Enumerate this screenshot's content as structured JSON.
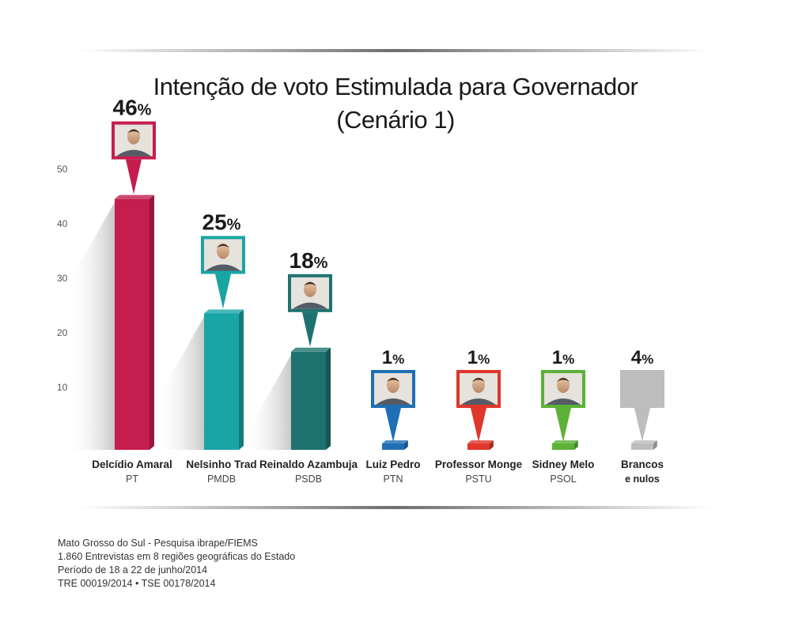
{
  "chart_data": {
    "type": "bar",
    "title": "Intenção de voto Estimulada para Governador",
    "subtitle": "(Cenário 1)",
    "y_ticks": [
      "10",
      "20",
      "30",
      "40",
      "50"
    ],
    "ylim": [
      0,
      50
    ],
    "percent_symbol": "%",
    "categories": [
      {
        "name": "Delcídio Amaral",
        "party": "PT",
        "value": 46,
        "value_label": "46",
        "color": "#c41e4e",
        "photo": "candidate-photo"
      },
      {
        "name": "Nelsinho Trad",
        "party": "PMDB",
        "value": 25,
        "value_label": "25",
        "color": "#1aa5a5",
        "photo": "candidate-photo"
      },
      {
        "name": "Reinaldo Azambuja",
        "party": "PSDB",
        "value": 18,
        "value_label": "18",
        "color": "#1e7370",
        "photo": "candidate-photo"
      },
      {
        "name": "Luiz Pedro",
        "party": "PTN",
        "value": 1,
        "value_label": "1",
        "color": "#1f6fb5",
        "photo": "candidate-photo"
      },
      {
        "name": "Professor Monge",
        "party": "PSTU",
        "value": 1,
        "value_label": "1",
        "color": "#e0362b",
        "photo": "candidate-photo"
      },
      {
        "name": "Sidney Melo",
        "party": "PSOL",
        "value": 1,
        "value_label": "1",
        "color": "#5cb238",
        "photo": "candidate-photo"
      },
      {
        "name": "Brancos",
        "name2": "e nulos",
        "party": "",
        "value": 4,
        "value_label": "4",
        "color": "#bdbdbd",
        "photo": ""
      }
    ]
  },
  "footer": {
    "line1": "Mato Grosso do Sul - Pesquisa ibrape/FIEMS",
    "line2": "1.860 Entrevistas em 8 regiões geográficas do Estado",
    "line3": "Período de 18 a 22 de junho/2014",
    "line4": "TRE 00019/2014  • TSE 00178/2014"
  }
}
